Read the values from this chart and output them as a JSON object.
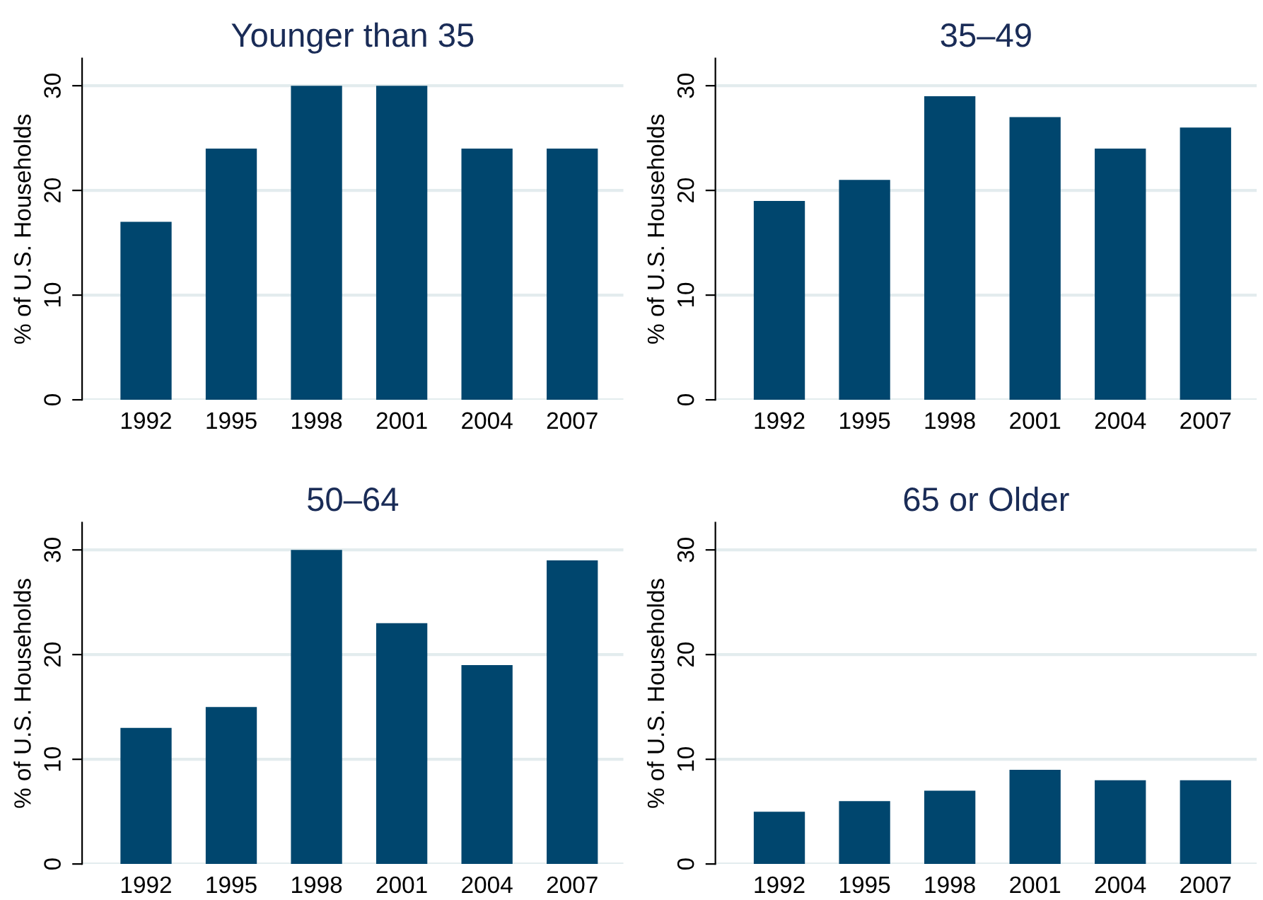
{
  "chart_data": [
    {
      "type": "bar",
      "title": "Younger than 35",
      "ylabel": "% of U.S. Households",
      "categories": [
        "1992",
        "1995",
        "1998",
        "2001",
        "2004",
        "2007"
      ],
      "values": [
        17,
        24,
        30,
        30,
        24,
        24
      ],
      "color": "#00466e",
      "ylim": [
        0,
        32.6
      ],
      "yticks": [
        0,
        10,
        20,
        30
      ],
      "grid": "y",
      "legend": false
    },
    {
      "type": "bar",
      "title": "35–49",
      "ylabel": "% of U.S. Households",
      "categories": [
        "1992",
        "1995",
        "1998",
        "2001",
        "2004",
        "2007"
      ],
      "values": [
        19,
        21,
        29,
        27,
        24,
        26
      ],
      "color": "#00466e",
      "ylim": [
        0,
        32.6
      ],
      "yticks": [
        0,
        10,
        20,
        30
      ],
      "grid": "y",
      "legend": false
    },
    {
      "type": "bar",
      "title": "50–64",
      "ylabel": "% of U.S. Households",
      "categories": [
        "1992",
        "1995",
        "1998",
        "2001",
        "2004",
        "2007"
      ],
      "values": [
        13,
        15,
        30,
        23,
        19,
        29
      ],
      "color": "#00466e",
      "ylim": [
        0,
        32.6
      ],
      "yticks": [
        0,
        10,
        20,
        30
      ],
      "grid": "y",
      "legend": false
    },
    {
      "type": "bar",
      "title": "65 or Older",
      "ylabel": "% of U.S. Households",
      "categories": [
        "1992",
        "1995",
        "1998",
        "2001",
        "2004",
        "2007"
      ],
      "values": [
        5,
        6,
        7,
        9,
        8,
        8
      ],
      "color": "#00466e",
      "ylim": [
        0,
        32.6
      ],
      "yticks": [
        0,
        10,
        20,
        30
      ],
      "grid": "y",
      "legend": false
    }
  ]
}
